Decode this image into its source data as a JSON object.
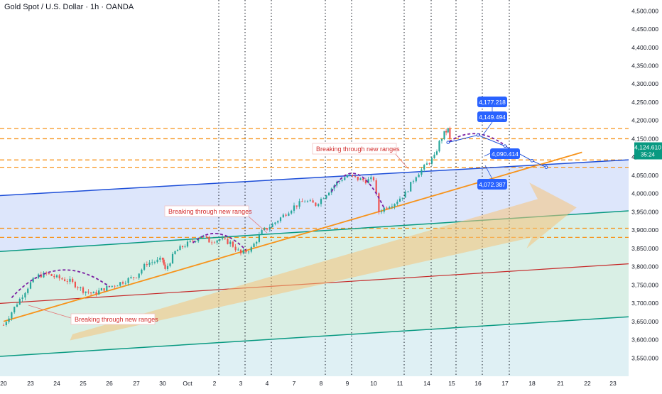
{
  "header": {
    "title": "Gold Spot / U.S. Dollar · 1h · OANDA"
  },
  "colors": {
    "up": "#26a69a",
    "down": "#ef5350",
    "channel_blue": "#2962ff",
    "teal": "#089981",
    "orange": "#f7931a",
    "purple": "#7b1fa2",
    "red_line": "#c62828",
    "callout_blue": "#2962ff",
    "price_tag": "#089981"
  },
  "chart_data": {
    "type": "candlestick",
    "symbol": "Gold Spot / U.S. Dollar",
    "interval": "1h",
    "source": "OANDA",
    "ylim": [
      3500,
      4520
    ],
    "y_ticks": [
      3550,
      3600,
      3650,
      3700,
      3750,
      3800,
      3850,
      3900,
      3950,
      4000,
      4050,
      4100,
      4150,
      4200,
      4250,
      4300,
      4350,
      4400,
      4450,
      4500
    ],
    "y_tick_labels": [
      "3,550.000",
      "3,600.000",
      "3,650.000",
      "3,700.000",
      "3,750.000",
      "3,800.000",
      "3,850.000",
      "3,900.000",
      "3,950.000",
      "4,000.000",
      "4,050.000",
      "4,100.000",
      "4,150.000",
      "4,200.000",
      "4,250.000",
      "4,300.000",
      "4,350.000",
      "4,400.000",
      "4,450.000",
      "4,500.000"
    ],
    "x_labels": [
      "20",
      "23",
      "24",
      "25",
      "26",
      "27",
      "30",
      "Oct",
      "2",
      "3",
      "4",
      "7",
      "8",
      "9",
      "10",
      "11",
      "14",
      "15",
      "16",
      "17",
      "18",
      "21",
      "22",
      "23"
    ],
    "x_slots": [
      0,
      1,
      2,
      3,
      4,
      5,
      6,
      7,
      8,
      9,
      10,
      11,
      12,
      13,
      14,
      15,
      16,
      17,
      18,
      19,
      20,
      21,
      22,
      23
    ],
    "price_path": [
      [
        0,
        3640
      ],
      [
        0.5,
        3700
      ],
      [
        1,
        3755
      ],
      [
        1.3,
        3775
      ],
      [
        1.6,
        3780
      ],
      [
        2.0,
        3770
      ],
      [
        2.5,
        3760
      ],
      [
        3.0,
        3735
      ],
      [
        3.4,
        3725
      ],
      [
        3.8,
        3740
      ],
      [
        4.2,
        3750
      ],
      [
        4.6,
        3762
      ],
      [
        5.0,
        3775
      ],
      [
        5.4,
        3810
      ],
      [
        5.8,
        3815
      ],
      [
        6.0,
        3820
      ],
      [
        6.1,
        3790
      ],
      [
        6.5,
        3840
      ],
      [
        6.8,
        3855
      ],
      [
        7.2,
        3870
      ],
      [
        7.5,
        3885
      ],
      [
        7.8,
        3870
      ],
      [
        8.2,
        3875
      ],
      [
        8.6,
        3865
      ],
      [
        9.0,
        3835
      ],
      [
        9.4,
        3850
      ],
      [
        9.8,
        3895
      ],
      [
        10.2,
        3915
      ],
      [
        10.6,
        3940
      ],
      [
        11.0,
        3965
      ],
      [
        11.4,
        3980
      ],
      [
        11.8,
        3970
      ],
      [
        12.2,
        4000
      ],
      [
        12.6,
        4030
      ],
      [
        13.0,
        4050
      ],
      [
        13.4,
        4040
      ],
      [
        13.7,
        4035
      ],
      [
        14.0,
        4040
      ],
      [
        14.2,
        3950
      ],
      [
        14.5,
        3965
      ],
      [
        14.8,
        3975
      ],
      [
        15.2,
        4000
      ],
      [
        15.6,
        4050
      ],
      [
        16.0,
        4080
      ],
      [
        16.3,
        4100
      ],
      [
        16.5,
        4140
      ],
      [
        16.7,
        4165
      ],
      [
        16.85,
        4175
      ],
      [
        17.0,
        4120
      ]
    ],
    "current_price": "4,124.610",
    "countdown": "35:24",
    "levels": [
      4177.218,
      4149.494,
      4090.414,
      4072.387
    ],
    "level_labels": [
      "4,177.218",
      "4,149.494",
      "4,090.414",
      "4,072.387"
    ],
    "annotations": [
      "Breaking through new ranges",
      "Breaking through new ranges",
      "Breaking through new ranges"
    ],
    "projection": [
      [
        16.85,
        4140
      ],
      [
        18.0,
        4160
      ],
      [
        19.0,
        4130
      ],
      [
        20.0,
        4090
      ],
      [
        20.5,
        4072
      ]
    ]
  }
}
